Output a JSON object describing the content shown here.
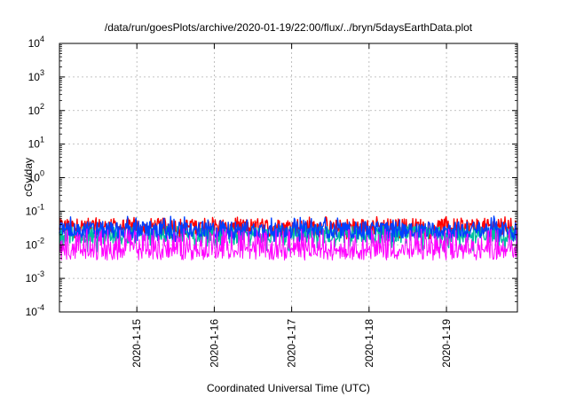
{
  "chart_data": {
    "type": "line",
    "title": "/data/run/goesPlots/archive/2020-01-19/22:00/flux/../bryn/5daysEarthData.plot",
    "xlabel": "Coordinated Universal Time (UTC)",
    "ylabel": "cGy/day",
    "y_scale": "log",
    "ylim": [
      0.0001,
      10000
    ],
    "xlim": [
      "2020-01-14 00:00",
      "2020-01-19 22:00"
    ],
    "grid": true,
    "legend": "none",
    "x_ticks": [
      "2020-1-15",
      "2020-1-16",
      "2020-1-17",
      "2020-1-18",
      "2020-1-19"
    ],
    "y_ticks": [
      {
        "value": 0.0001,
        "base": "10",
        "exp": "-4"
      },
      {
        "value": 0.001,
        "base": "10",
        "exp": "-3"
      },
      {
        "value": 0.01,
        "base": "10",
        "exp": "-2"
      },
      {
        "value": 0.1,
        "base": "10",
        "exp": "-1"
      },
      {
        "value": 1,
        "base": "10",
        "exp": "0"
      },
      {
        "value": 10,
        "base": "10",
        "exp": "1"
      },
      {
        "value": 100,
        "base": "10",
        "exp": "2"
      },
      {
        "value": 1000,
        "base": "10",
        "exp": "3"
      },
      {
        "value": 10000,
        "base": "10",
        "exp": "4"
      }
    ],
    "series": [
      {
        "color": "#ff0000",
        "approx_min": 0.015,
        "approx_max": 0.07,
        "typical": 0.035
      },
      {
        "color": "#00c0a0",
        "approx_min": 0.006,
        "approx_max": 0.04,
        "typical": 0.02
      },
      {
        "color": "#0040ff",
        "approx_min": 0.012,
        "approx_max": 0.075,
        "typical": 0.028
      },
      {
        "color": "#ff00ff",
        "approx_min": 0.0035,
        "approx_max": 0.03,
        "typical": 0.006
      }
    ]
  }
}
